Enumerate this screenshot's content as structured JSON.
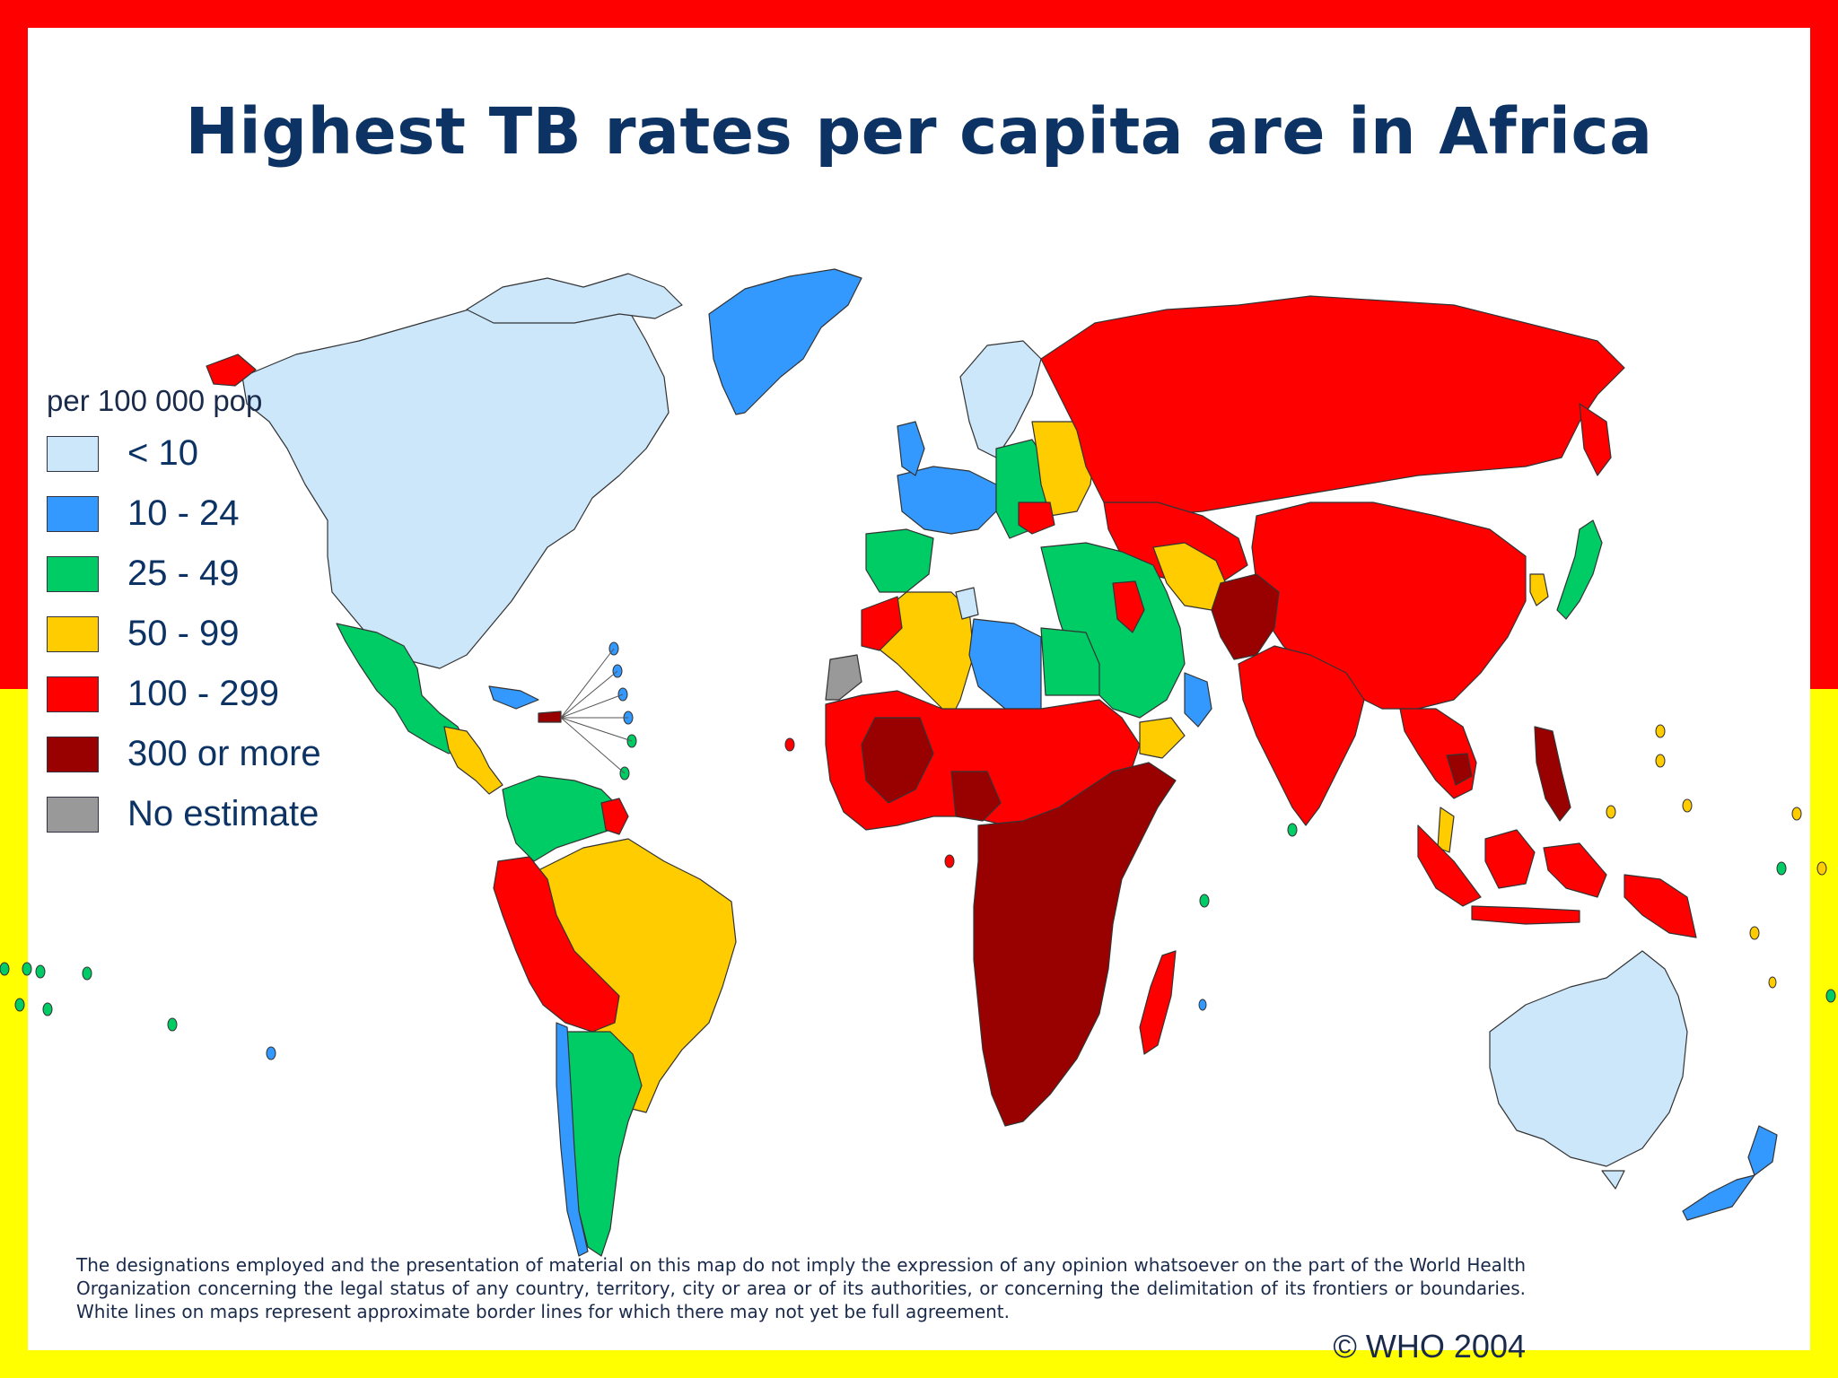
{
  "title": "Highest TB rates per capita are in Africa",
  "legend": {
    "unit": "per 100 000 pop",
    "items": [
      {
        "label": "< 10",
        "color": "#cce6fa"
      },
      {
        "label": "10 - 24",
        "color": "#3399ff"
      },
      {
        "label": "25 - 49",
        "color": "#00cc66"
      },
      {
        "label": "50 - 99",
        "color": "#ffcc00"
      },
      {
        "label": "100 - 299",
        "color": "#ff0000"
      },
      {
        "label": "300 or more",
        "color": "#990000"
      },
      {
        "label": "No estimate",
        "color": "#999999"
      }
    ]
  },
  "disclaimer": "The designations employed and the presentation of material on this map do not imply the expression of any opinion whatsoever on the part of the World Health Organization concerning the legal status of any country, territory, city or area or of its authorities, or concerning the delimitation of its frontiers or boundaries. White lines on maps represent approximate border lines for which there may not yet be full agreement.",
  "copyright": "© WHO 2004",
  "regions": [
    {
      "name": "Greenland",
      "category": "10 - 24"
    },
    {
      "name": "North America",
      "category": "< 10"
    },
    {
      "name": "Mexico",
      "category": "25 - 49"
    },
    {
      "name": "Brazil",
      "category": "50 - 99"
    },
    {
      "name": "Peru / Bolivia",
      "category": "100 - 299"
    },
    {
      "name": "Southern South America",
      "category": "25 - 49"
    },
    {
      "name": "Western Europe",
      "category": "10 - 24"
    },
    {
      "name": "Russia",
      "category": "100 - 299"
    },
    {
      "name": "China",
      "category": "100 - 299"
    },
    {
      "name": "India",
      "category": "100 - 299"
    },
    {
      "name": "Afghanistan / Pakistan",
      "category": "300 or more"
    },
    {
      "name": "Middle East",
      "category": "25 - 49"
    },
    {
      "name": "North Africa",
      "category": "50 - 99"
    },
    {
      "name": "Libya",
      "category": "10 - 24"
    },
    {
      "name": "West & Central Africa",
      "category": "100 - 299"
    },
    {
      "name": "Sub-Saharan Africa",
      "category": "300 or more"
    },
    {
      "name": "Madagascar",
      "category": "100 - 299"
    },
    {
      "name": "Indonesia",
      "category": "100 - 299"
    },
    {
      "name": "Australia",
      "category": "< 10"
    },
    {
      "name": "New Zealand",
      "category": "10 - 24"
    },
    {
      "name": "Japan",
      "category": "25 - 49"
    },
    {
      "name": "Western Sahara",
      "category": "No estimate"
    }
  ]
}
